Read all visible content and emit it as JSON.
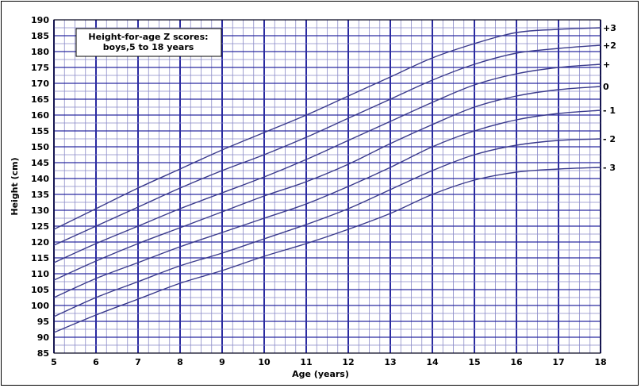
{
  "chart_data": {
    "type": "line",
    "title_lines": [
      "Height-for-age Z scores:",
      "boys,5 to 18 years"
    ],
    "xlabel": "Age (years)",
    "ylabel": "Height (cm)",
    "xlim": [
      5,
      18
    ],
    "ylim": [
      85,
      190
    ],
    "x_ticks": [
      5,
      6,
      7,
      8,
      9,
      10,
      11,
      12,
      13,
      14,
      15,
      16,
      17,
      18
    ],
    "y_ticks": [
      85,
      90,
      95,
      100,
      105,
      110,
      115,
      120,
      125,
      130,
      135,
      140,
      145,
      150,
      155,
      160,
      165,
      170,
      175,
      180,
      185,
      190
    ],
    "grid": true,
    "x": [
      5,
      6,
      7,
      8,
      9,
      10,
      11,
      12,
      13,
      14,
      15,
      16,
      17,
      18
    ],
    "series": [
      {
        "name": "+3",
        "values": [
          124,
          130.5,
          137,
          143,
          149,
          154.5,
          160,
          166,
          172,
          178,
          182.5,
          186,
          187,
          187.5
        ]
      },
      {
        "name": "+2",
        "values": [
          119,
          125,
          131,
          137,
          142.5,
          147.5,
          153,
          159,
          165,
          171,
          176,
          179.5,
          181,
          182
        ]
      },
      {
        "name": "+",
        "values": [
          113.5,
          119.5,
          125,
          130.5,
          135.5,
          140.5,
          146,
          152,
          158,
          164,
          169.5,
          173,
          175,
          176
        ]
      },
      {
        "name": "0",
        "values": [
          108,
          114,
          119.5,
          124.5,
          129.5,
          134.5,
          139,
          144.5,
          151,
          157,
          162.5,
          166,
          168,
          169
        ]
      },
      {
        "name": "- 1",
        "values": [
          102.5,
          108.5,
          113.5,
          118.5,
          123,
          127.5,
          132,
          137.5,
          143.5,
          150,
          155,
          158.5,
          160.5,
          161.5
        ]
      },
      {
        "name": "- 2",
        "values": [
          96.5,
          102.5,
          107.5,
          112.5,
          116.5,
          121,
          125.5,
          130.5,
          136.5,
          142.5,
          147.5,
          150.5,
          152,
          152.5
        ]
      },
      {
        "name": "- 3",
        "values": [
          91.5,
          97,
          102,
          107,
          111,
          115.5,
          119.5,
          124,
          129,
          135,
          139.5,
          142,
          143,
          143.5
        ]
      }
    ],
    "colors": {
      "curve": "#3a3a8c",
      "major_grid": "#2a2aa0",
      "minor_grid": "#8a8ac8",
      "frame": "#000000"
    }
  }
}
